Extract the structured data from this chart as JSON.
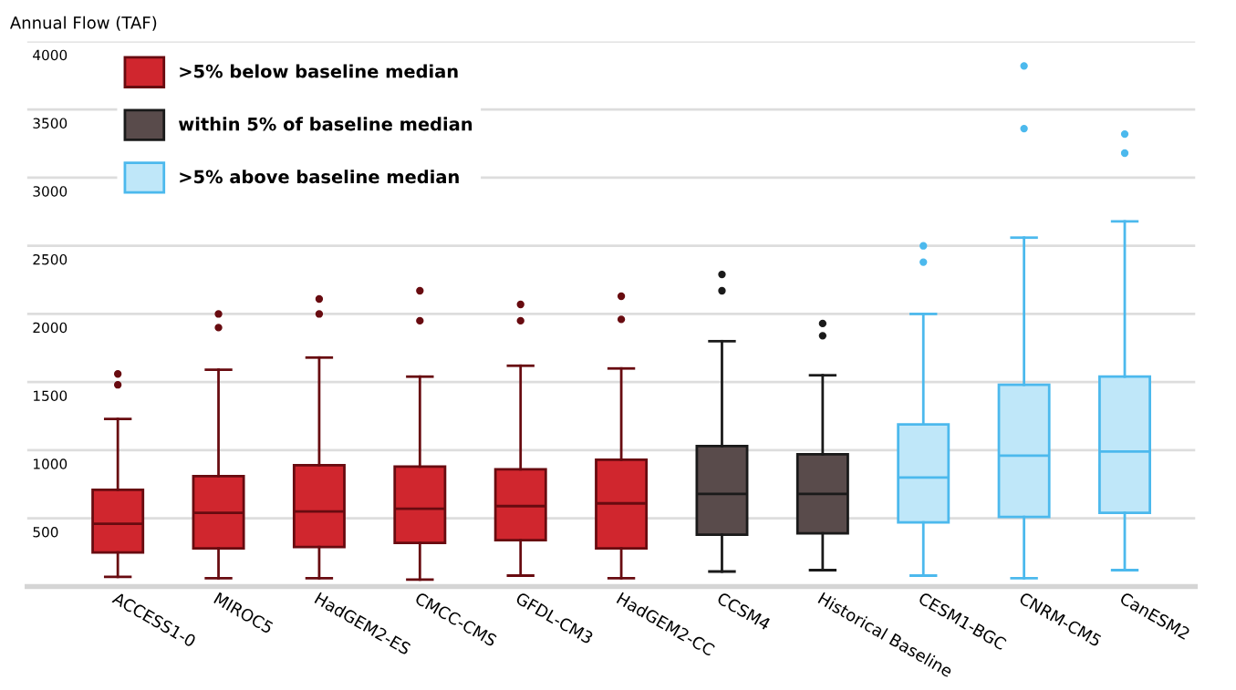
{
  "chart_data": {
    "type": "box",
    "ylabel": "Annual Flow (TAF)",
    "categories": [
      "ACCESS1-0",
      "MIROC5",
      "HadGEM2-ES",
      "CMCC-CMS",
      "GFDL-CM3",
      "HadGEM2-CC",
      "CCSM4",
      "Historical Baseline",
      "CESM1-BGC",
      "CNRM-CM5",
      "CanESM2"
    ],
    "ylim": [
      0,
      4000
    ],
    "yticks": [
      500,
      1000,
      1500,
      2000,
      2500,
      3000,
      3500,
      4000
    ],
    "grid": "y",
    "legend": "top left",
    "series": [
      {
        "name": ">5% below baseline median",
        "color": "#d0262e",
        "boxes": [
          {
            "low": 70,
            "q1": 250,
            "median": 460,
            "q3": 710,
            "high": 1230,
            "outliers": [
              1480,
              1560
            ]
          },
          {
            "low": 60,
            "q1": 280,
            "median": 540,
            "q3": 810,
            "high": 1590,
            "outliers": [
              1900,
              2000
            ]
          },
          {
            "low": 60,
            "q1": 290,
            "median": 550,
            "q3": 890,
            "high": 1680,
            "outliers": [
              2000,
              2110
            ]
          },
          {
            "low": 50,
            "q1": 320,
            "median": 570,
            "q3": 880,
            "high": 1540,
            "outliers": [
              1950,
              2170
            ]
          },
          {
            "low": 80,
            "q1": 340,
            "median": 590,
            "q3": 860,
            "high": 1620,
            "outliers": [
              1950,
              2070
            ]
          },
          {
            "low": 60,
            "q1": 280,
            "median": 610,
            "q3": 930,
            "high": 1600,
            "outliers": [
              1960,
              2130
            ]
          },
          null,
          null,
          null,
          null,
          null
        ]
      },
      {
        "name": "within 5% of baseline median",
        "color": "#594b4b",
        "boxes": [
          null,
          null,
          null,
          null,
          null,
          null,
          {
            "low": 110,
            "q1": 380,
            "median": 680,
            "q3": 1030,
            "high": 1800,
            "outliers": [
              2170,
              2290
            ]
          },
          {
            "low": 120,
            "q1": 390,
            "median": 680,
            "q3": 970,
            "high": 1550,
            "outliers": [
              1840,
              1930
            ]
          },
          null,
          null,
          null
        ]
      },
      {
        "name": ">5% above baseline median",
        "color": "#bfe7f9",
        "boxes": [
          null,
          null,
          null,
          null,
          null,
          null,
          null,
          null,
          {
            "low": 80,
            "q1": 470,
            "median": 800,
            "q3": 1190,
            "high": 2000,
            "outliers": [
              2380,
              2500
            ]
          },
          {
            "low": 60,
            "q1": 510,
            "median": 960,
            "q3": 1480,
            "high": 2560,
            "outliers": [
              3360,
              3820
            ]
          },
          {
            "low": 120,
            "q1": 540,
            "median": 990,
            "q3": 1540,
            "high": 2680,
            "outliers": [
              3180,
              3320
            ]
          }
        ]
      }
    ]
  }
}
